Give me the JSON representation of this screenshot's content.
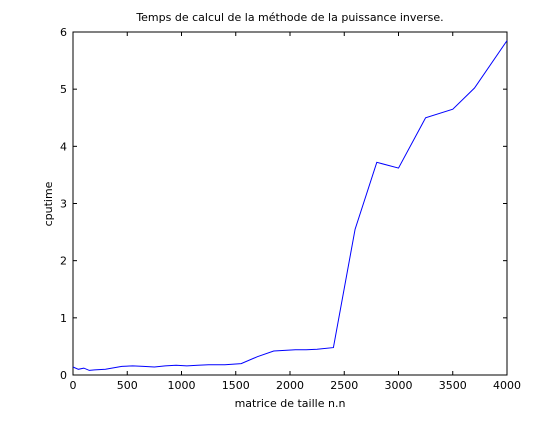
{
  "chart_data": {
    "type": "line",
    "title": "Temps de calcul de la méthode de la puissance inverse.",
    "xlabel": "matrice de taille n.n",
    "ylabel": "cputime",
    "xlim": [
      0,
      4000
    ],
    "ylim": [
      0,
      6
    ],
    "grid": false,
    "xticks": [
      0,
      500,
      1000,
      1500,
      2000,
      2500,
      3000,
      3500,
      4000
    ],
    "yticks": [
      0,
      1,
      2,
      3,
      4,
      5,
      6
    ],
    "series": [
      {
        "color": "#0000ff",
        "x": [
          0,
          50,
          100,
          150,
          200,
          300,
          450,
          550,
          650,
          750,
          850,
          950,
          1050,
          1150,
          1250,
          1400,
          1550,
          1700,
          1850,
          1950,
          2050,
          2150,
          2250,
          2400,
          2600,
          2800,
          3000,
          3250,
          3500,
          3700,
          4000
        ],
        "y": [
          0.14,
          0.1,
          0.12,
          0.08,
          0.09,
          0.1,
          0.15,
          0.16,
          0.15,
          0.14,
          0.16,
          0.17,
          0.16,
          0.17,
          0.18,
          0.18,
          0.2,
          0.32,
          0.42,
          0.43,
          0.44,
          0.44,
          0.45,
          0.48,
          2.55,
          3.72,
          3.62,
          4.5,
          4.65,
          5.02,
          5.85
        ]
      }
    ]
  }
}
